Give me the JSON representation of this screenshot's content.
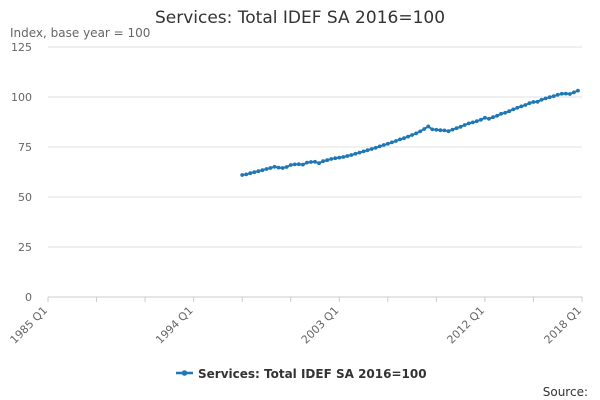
{
  "chart_data": {
    "type": "line",
    "title": "Services: Total IDEF SA 2016=100",
    "subtitle": "Index, base year = 100",
    "xlabel": "",
    "ylabel": "Index, base year = 100",
    "x_start": "1985 Q1",
    "x_end": "2018 Q1",
    "ylim": [
      0,
      125
    ],
    "yticks": [
      "0",
      "25",
      "50",
      "75",
      "100",
      "125"
    ],
    "xticks": [
      "1985 Q1",
      "1994 Q1",
      "2003 Q1",
      "2012 Q1",
      "2018 Q1"
    ],
    "grid": true,
    "legend_position": "bottom",
    "series": [
      {
        "name": "Services: Total IDEF SA 2016=100",
        "color": "#1f77b4",
        "start_period": "1997 Q1",
        "frequency": "quarterly",
        "values": [
          61.0,
          61.3,
          61.9,
          62.4,
          62.9,
          63.4,
          64.0,
          64.5,
          65.1,
          64.7,
          64.5,
          65.0,
          66.0,
          66.3,
          66.4,
          66.2,
          67.2,
          67.5,
          67.6,
          66.9,
          67.9,
          68.4,
          69.0,
          69.4,
          69.7,
          70.0,
          70.5,
          71.0,
          71.6,
          72.2,
          72.8,
          73.4,
          74.0,
          74.6,
          75.3,
          76.0,
          76.6,
          77.3,
          78.0,
          78.8,
          79.4,
          80.2,
          81.0,
          81.8,
          82.8,
          84.0,
          85.3,
          83.8,
          83.6,
          83.4,
          83.3,
          82.9,
          83.7,
          84.4,
          85.1,
          86.0,
          86.8,
          87.3,
          87.9,
          88.6,
          89.6,
          89.1,
          89.9,
          90.6,
          91.6,
          92.1,
          92.9,
          93.8,
          94.6,
          95.3,
          96.0,
          96.9,
          97.5,
          97.6,
          98.6,
          99.3,
          99.9,
          100.4,
          101.1,
          101.6,
          101.7,
          101.5,
          102.3,
          103.2
        ]
      }
    ]
  },
  "footer": {
    "source_label": "Source:"
  }
}
